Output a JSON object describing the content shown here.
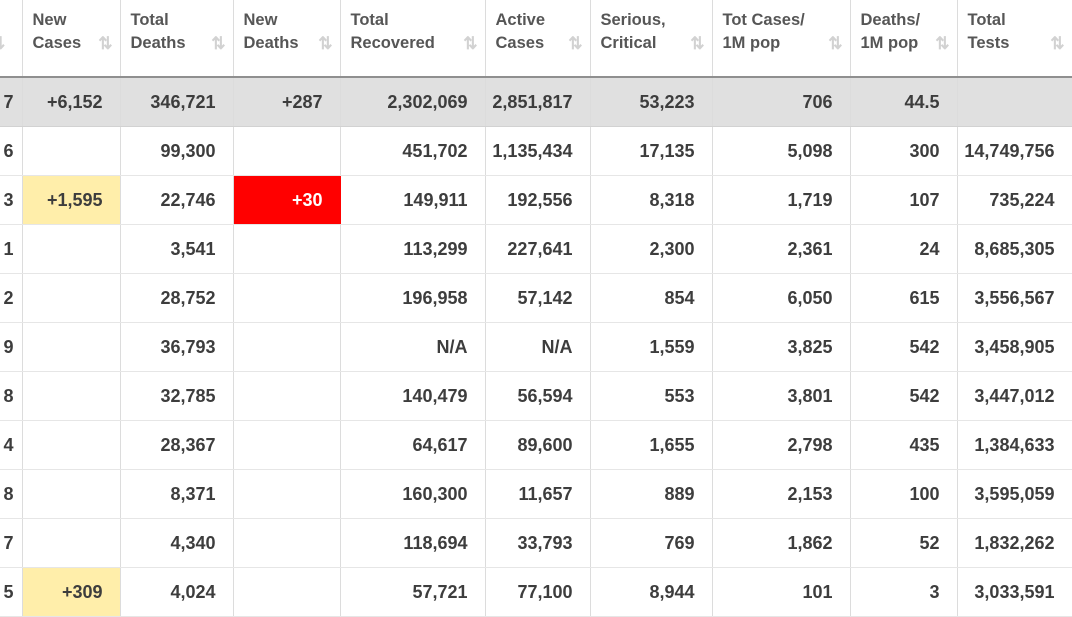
{
  "theme": {
    "header_text": "#565656",
    "cell_text": "#3d3d3d",
    "grid_border_vertical": "#dcdcdc",
    "grid_border_horizontal": "#e6e6e6",
    "header_bottom_border": "#8f8f8f",
    "gray_row_bg": "#e0e0e0",
    "yellow_highlight_bg": "#ffeeaa",
    "red_highlight_bg": "#ff0000",
    "red_highlight_text": "#ffffff",
    "sort_icon_color": "#d2d2d2"
  },
  "table": {
    "sort_icon_glyph": "⇅",
    "partial_sort_icon_glyph": "⇅",
    "columns": [
      {
        "key": "total_cases_partial",
        "line1": "",
        "line2": "",
        "sortable": true
      },
      {
        "key": "new_cases",
        "line1": "New",
        "line2": "Cases",
        "sortable": true
      },
      {
        "key": "total_deaths",
        "line1": "Total",
        "line2": "Deaths",
        "sortable": true
      },
      {
        "key": "new_deaths",
        "line1": "New",
        "line2": "Deaths",
        "sortable": true
      },
      {
        "key": "total_recovered",
        "line1": "Total",
        "line2": "Recovered",
        "sortable": true
      },
      {
        "key": "active_cases",
        "line1": "Active",
        "line2": "Cases",
        "sortable": true
      },
      {
        "key": "serious_critical",
        "line1": "Serious,",
        "line2": "Critical",
        "sortable": true
      },
      {
        "key": "cases_per_1m",
        "line1": "Tot Cases/",
        "line2": "1M pop",
        "sortable": true
      },
      {
        "key": "deaths_per_1m",
        "line1": "Deaths/",
        "line2": "1M pop",
        "sortable": true
      },
      {
        "key": "total_tests",
        "line1": "Total",
        "line2": "Tests",
        "sortable": true
      }
    ],
    "rows": [
      {
        "cells": [
          "7",
          "+6,152",
          "346,721",
          "+287",
          "2,302,069",
          "2,851,817",
          "53,223",
          "706",
          "44.5",
          ""
        ],
        "row_style": "gray",
        "cell_styles": [
          null,
          null,
          null,
          null,
          null,
          null,
          null,
          null,
          null,
          null
        ]
      },
      {
        "cells": [
          "6",
          "",
          "99,300",
          "",
          "451,702",
          "1,135,434",
          "17,135",
          "5,098",
          "300",
          "14,749,756"
        ],
        "row_style": null,
        "cell_styles": [
          null,
          null,
          null,
          null,
          null,
          null,
          null,
          null,
          null,
          null
        ]
      },
      {
        "cells": [
          "3",
          "+1,595",
          "22,746",
          "+30",
          "149,911",
          "192,556",
          "8,318",
          "1,719",
          "107",
          "735,224"
        ],
        "row_style": null,
        "cell_styles": [
          null,
          "yellow",
          null,
          "red",
          null,
          null,
          null,
          null,
          null,
          null
        ]
      },
      {
        "cells": [
          "1",
          "",
          "3,541",
          "",
          "113,299",
          "227,641",
          "2,300",
          "2,361",
          "24",
          "8,685,305"
        ],
        "row_style": null,
        "cell_styles": [
          null,
          null,
          null,
          null,
          null,
          null,
          null,
          null,
          null,
          null
        ]
      },
      {
        "cells": [
          "2",
          "",
          "28,752",
          "",
          "196,958",
          "57,142",
          "854",
          "6,050",
          "615",
          "3,556,567"
        ],
        "row_style": null,
        "cell_styles": [
          null,
          null,
          null,
          null,
          null,
          null,
          null,
          null,
          null,
          null
        ]
      },
      {
        "cells": [
          "9",
          "",
          "36,793",
          "",
          "N/A",
          "N/A",
          "1,559",
          "3,825",
          "542",
          "3,458,905"
        ],
        "row_style": null,
        "cell_styles": [
          null,
          null,
          null,
          null,
          null,
          null,
          null,
          null,
          null,
          null
        ]
      },
      {
        "cells": [
          "8",
          "",
          "32,785",
          "",
          "140,479",
          "56,594",
          "553",
          "3,801",
          "542",
          "3,447,012"
        ],
        "row_style": null,
        "cell_styles": [
          null,
          null,
          null,
          null,
          null,
          null,
          null,
          null,
          null,
          null
        ]
      },
      {
        "cells": [
          "4",
          "",
          "28,367",
          "",
          "64,617",
          "89,600",
          "1,655",
          "2,798",
          "435",
          "1,384,633"
        ],
        "row_style": null,
        "cell_styles": [
          null,
          null,
          null,
          null,
          null,
          null,
          null,
          null,
          null,
          null
        ]
      },
      {
        "cells": [
          "8",
          "",
          "8,371",
          "",
          "160,300",
          "11,657",
          "889",
          "2,153",
          "100",
          "3,595,059"
        ],
        "row_style": null,
        "cell_styles": [
          null,
          null,
          null,
          null,
          null,
          null,
          null,
          null,
          null,
          null
        ]
      },
      {
        "cells": [
          "7",
          "",
          "4,340",
          "",
          "118,694",
          "33,793",
          "769",
          "1,862",
          "52",
          "1,832,262"
        ],
        "row_style": null,
        "cell_styles": [
          null,
          null,
          null,
          null,
          null,
          null,
          null,
          null,
          null,
          null
        ]
      },
      {
        "cells": [
          "5",
          "+309",
          "4,024",
          "",
          "57,721",
          "77,100",
          "8,944",
          "101",
          "3",
          "3,033,591"
        ],
        "row_style": null,
        "cell_styles": [
          null,
          "yellow",
          null,
          null,
          null,
          null,
          null,
          null,
          null,
          null
        ]
      }
    ]
  }
}
